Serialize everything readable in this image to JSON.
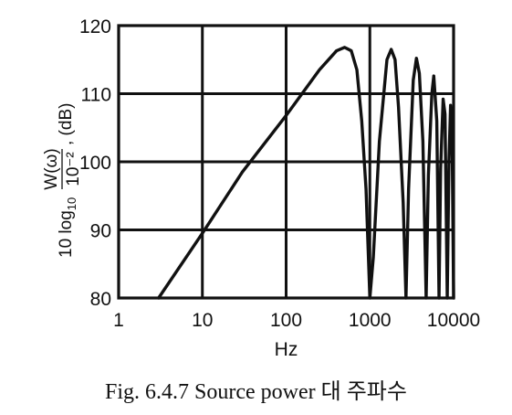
{
  "caption": "Fig. 6.4.7  Source power 대 주파수",
  "chart_data": {
    "type": "line",
    "xlabel": "Hz",
    "ylabel": {
      "prefix": "10 log",
      "sub": "10",
      "numerator": "W(ω)",
      "denominator": "10⁻²",
      "suffix": ", (dB)"
    },
    "xscale": "log",
    "xlim": [
      1,
      10000
    ],
    "ylim": [
      80,
      120
    ],
    "grid": true,
    "xticks": [
      {
        "value": 1,
        "label": "1"
      },
      {
        "value": 10,
        "label": "10"
      },
      {
        "value": 100,
        "label": "100"
      },
      {
        "value": 1000,
        "label": "1000"
      },
      {
        "value": 10000,
        "label": "10000"
      }
    ],
    "yticks": [
      {
        "value": 80,
        "label": "80"
      },
      {
        "value": 90,
        "label": "90"
      },
      {
        "value": 100,
        "label": "100"
      },
      {
        "value": 110,
        "label": "110"
      },
      {
        "value": 120,
        "label": "120"
      }
    ],
    "series": [
      {
        "color": "#111111",
        "points": [
          [
            3,
            80
          ],
          [
            10,
            89.5
          ],
          [
            30,
            98.5
          ],
          [
            100,
            106.8
          ],
          [
            250,
            113.5
          ],
          [
            400,
            116.3
          ],
          [
            500,
            116.8
          ],
          [
            600,
            116.3
          ],
          [
            700,
            113.5
          ],
          [
            800,
            106
          ],
          [
            900,
            96
          ],
          [
            1000,
            80
          ],
          [
            1100,
            86
          ],
          [
            1300,
            103
          ],
          [
            1600,
            115
          ],
          [
            1800,
            116.5
          ],
          [
            2000,
            115
          ],
          [
            2200,
            108
          ],
          [
            2500,
            94
          ],
          [
            2700,
            80
          ],
          [
            2900,
            96
          ],
          [
            3300,
            112
          ],
          [
            3600,
            115.2
          ],
          [
            3900,
            113
          ],
          [
            4300,
            103
          ],
          [
            4700,
            80
          ],
          [
            5000,
            98
          ],
          [
            5500,
            110
          ],
          [
            5800,
            112.6
          ],
          [
            6300,
            106
          ],
          [
            6700,
            80
          ],
          [
            7000,
            99
          ],
          [
            7500,
            109.2
          ],
          [
            7900,
            107
          ],
          [
            8400,
            80
          ],
          [
            8800,
            100
          ],
          [
            9200,
            108.3
          ],
          [
            9600,
            104
          ],
          [
            10000,
            80
          ]
        ]
      }
    ]
  }
}
